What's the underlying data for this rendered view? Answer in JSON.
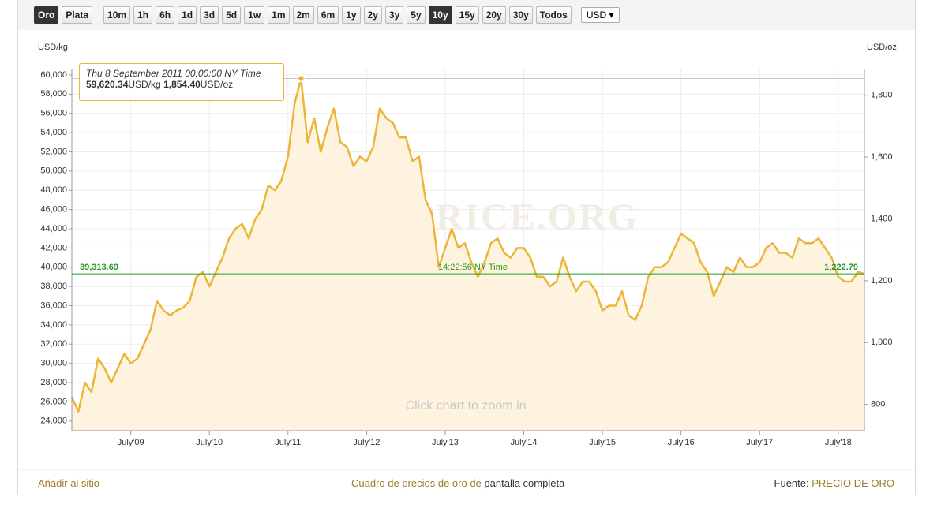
{
  "toolbar": {
    "metals": [
      "Oro",
      "Plata"
    ],
    "active_metal": "Oro",
    "ranges": [
      "10m",
      "1h",
      "6h",
      "1d",
      "3d",
      "5d",
      "1w",
      "1m",
      "2m",
      "6m",
      "1y",
      "2y",
      "3y",
      "5y",
      "10y",
      "15y",
      "20y",
      "30y",
      "Todos"
    ],
    "active_range": "10y",
    "currency": "USD"
  },
  "chart_data": {
    "type": "area",
    "y_label": "USD/kg",
    "y2_label": "USD/oz",
    "watermark": "GOLDPRICE.ORG",
    "hint": "Click chart to zoom in",
    "color": "#ecb53a",
    "fill_color": "#fdf3de",
    "grid": true,
    "x": [
      "2008-10",
      "2008-11",
      "2008-12",
      "2009-01",
      "2009-02",
      "2009-03",
      "2009-04",
      "2009-05",
      "2009-06",
      "2009-07",
      "2009-08",
      "2009-09",
      "2009-10",
      "2009-11",
      "2009-12",
      "2010-01",
      "2010-02",
      "2010-03",
      "2010-04",
      "2010-05",
      "2010-06",
      "2010-07",
      "2010-08",
      "2010-09",
      "2010-10",
      "2010-11",
      "2010-12",
      "2011-01",
      "2011-02",
      "2011-03",
      "2011-04",
      "2011-05",
      "2011-06",
      "2011-07",
      "2011-08",
      "2011-09",
      "2011-10",
      "2011-11",
      "2011-12",
      "2012-01",
      "2012-02",
      "2012-03",
      "2012-04",
      "2012-05",
      "2012-06",
      "2012-07",
      "2012-08",
      "2012-09",
      "2012-10",
      "2012-11",
      "2012-12",
      "2013-01",
      "2013-02",
      "2013-03",
      "2013-04",
      "2013-05",
      "2013-06",
      "2013-07",
      "2013-08",
      "2013-09",
      "2013-10",
      "2013-11",
      "2013-12",
      "2014-01",
      "2014-02",
      "2014-03",
      "2014-04",
      "2014-05",
      "2014-06",
      "2014-07",
      "2014-08",
      "2014-09",
      "2014-10",
      "2014-11",
      "2014-12",
      "2015-01",
      "2015-02",
      "2015-03",
      "2015-04",
      "2015-05",
      "2015-06",
      "2015-07",
      "2015-08",
      "2015-09",
      "2015-10",
      "2015-11",
      "2015-12",
      "2016-01",
      "2016-02",
      "2016-03",
      "2016-04",
      "2016-05",
      "2016-06",
      "2016-07",
      "2016-08",
      "2016-09",
      "2016-10",
      "2016-11",
      "2016-12",
      "2017-01",
      "2017-02",
      "2017-03",
      "2017-04",
      "2017-05",
      "2017-06",
      "2017-07",
      "2017-08",
      "2017-09",
      "2017-10",
      "2017-11",
      "2017-12",
      "2018-01",
      "2018-02",
      "2018-03",
      "2018-04",
      "2018-05",
      "2018-06",
      "2018-07",
      "2018-08",
      "2018-09",
      "2018-10",
      "2018-11"
    ],
    "values": [
      26500,
      25000,
      28000,
      27000,
      30500,
      29500,
      28000,
      29500,
      31000,
      30000,
      30500,
      32000,
      33500,
      36500,
      35500,
      35000,
      35500,
      35800,
      36500,
      39000,
      39500,
      38000,
      39500,
      41000,
      43000,
      44000,
      44500,
      43000,
      45000,
      46000,
      48500,
      48000,
      49000,
      51500,
      57000,
      59620.34,
      53000,
      55500,
      52000,
      54500,
      56500,
      53000,
      52500,
      50500,
      51500,
      51000,
      52500,
      56500,
      55500,
      55000,
      53500,
      53500,
      51000,
      51500,
      47000,
      45500,
      40000,
      42000,
      44000,
      42000,
      42500,
      40500,
      39000,
      40500,
      42500,
      43000,
      41500,
      41000,
      42000,
      42000,
      41000,
      39000,
      39000,
      38000,
      38500,
      41000,
      39000,
      37500,
      38500,
      38500,
      37500,
      35500,
      36000,
      36000,
      37500,
      35000,
      34500,
      36000,
      39000,
      40000,
      40000,
      40500,
      42000,
      43500,
      43000,
      42500,
      40500,
      39500,
      37000,
      38500,
      40000,
      39500,
      41000,
      40000,
      40000,
      40500,
      42000,
      42500,
      41500,
      41500,
      41000,
      43000,
      42500,
      42500,
      43000,
      42000,
      41000,
      39000,
      38500,
      38500,
      39500,
      39313.69
    ],
    "xlim": [
      "2008-10",
      "2018-11"
    ],
    "xticks": [
      {
        "value": "2009-07",
        "label": "July'09"
      },
      {
        "value": "2010-07",
        "label": "July'10"
      },
      {
        "value": "2011-07",
        "label": "July'11"
      },
      {
        "value": "2012-07",
        "label": "July'12"
      },
      {
        "value": "2013-07",
        "label": "July'13"
      },
      {
        "value": "2014-07",
        "label": "July'14"
      },
      {
        "value": "2015-07",
        "label": "July'15"
      },
      {
        "value": "2016-07",
        "label": "July'16"
      },
      {
        "value": "2017-07",
        "label": "July'17"
      },
      {
        "value": "2018-07",
        "label": "July'18"
      }
    ],
    "ylim": [
      23000,
      60650
    ],
    "yticks": [
      {
        "value": 24000,
        "label": "24,000"
      },
      {
        "value": 26000,
        "label": "26,000"
      },
      {
        "value": 28000,
        "label": "28,000"
      },
      {
        "value": 30000,
        "label": "30,000"
      },
      {
        "value": 32000,
        "label": "32,000"
      },
      {
        "value": 34000,
        "label": "34,000"
      },
      {
        "value": 36000,
        "label": "36,000"
      },
      {
        "value": 38000,
        "label": "38,000"
      },
      {
        "value": 40000,
        "label": "40,000"
      },
      {
        "value": 42000,
        "label": "42,000"
      },
      {
        "value": 44000,
        "label": "44,000"
      },
      {
        "value": 46000,
        "label": "46,000"
      },
      {
        "value": 48000,
        "label": "48,000"
      },
      {
        "value": 50000,
        "label": "50,000"
      },
      {
        "value": 52000,
        "label": "52,000"
      },
      {
        "value": 54000,
        "label": "54,000"
      },
      {
        "value": 56000,
        "label": "56,000"
      },
      {
        "value": 58000,
        "label": "58,000"
      },
      {
        "value": 60000,
        "label": "60,000"
      }
    ],
    "y2lim": [
      715,
      1886
    ],
    "y2ticks": [
      800,
      {
        "value": 1000,
        "label": "1,000"
      },
      {
        "value": 1200,
        "label": "1,200"
      },
      {
        "value": 1400,
        "label": "1,400"
      },
      {
        "value": 1600,
        "label": "1,600"
      },
      {
        "value": 1800,
        "label": "1,800"
      }
    ],
    "current": {
      "value": 39313.69,
      "label": "39,313.69",
      "oz_label": "1,222.79",
      "time": "14:22:56 NY Time",
      "color": "#2a9a2a"
    },
    "tooltip": {
      "date": "Thu 8 September 2011 00:00:00 NY Time",
      "kg": "59,620.34",
      "kg_unit": "USD/kg",
      "oz": "1,854.40",
      "oz_unit": "USD/oz"
    }
  },
  "footer": {
    "add": "Añadir al sitio",
    "middle_link": "Cuadro de precios de oro de",
    "middle_text": "pantalla completa",
    "source_label": "Fuente:",
    "source_link": "PRECIO DE ORO"
  }
}
